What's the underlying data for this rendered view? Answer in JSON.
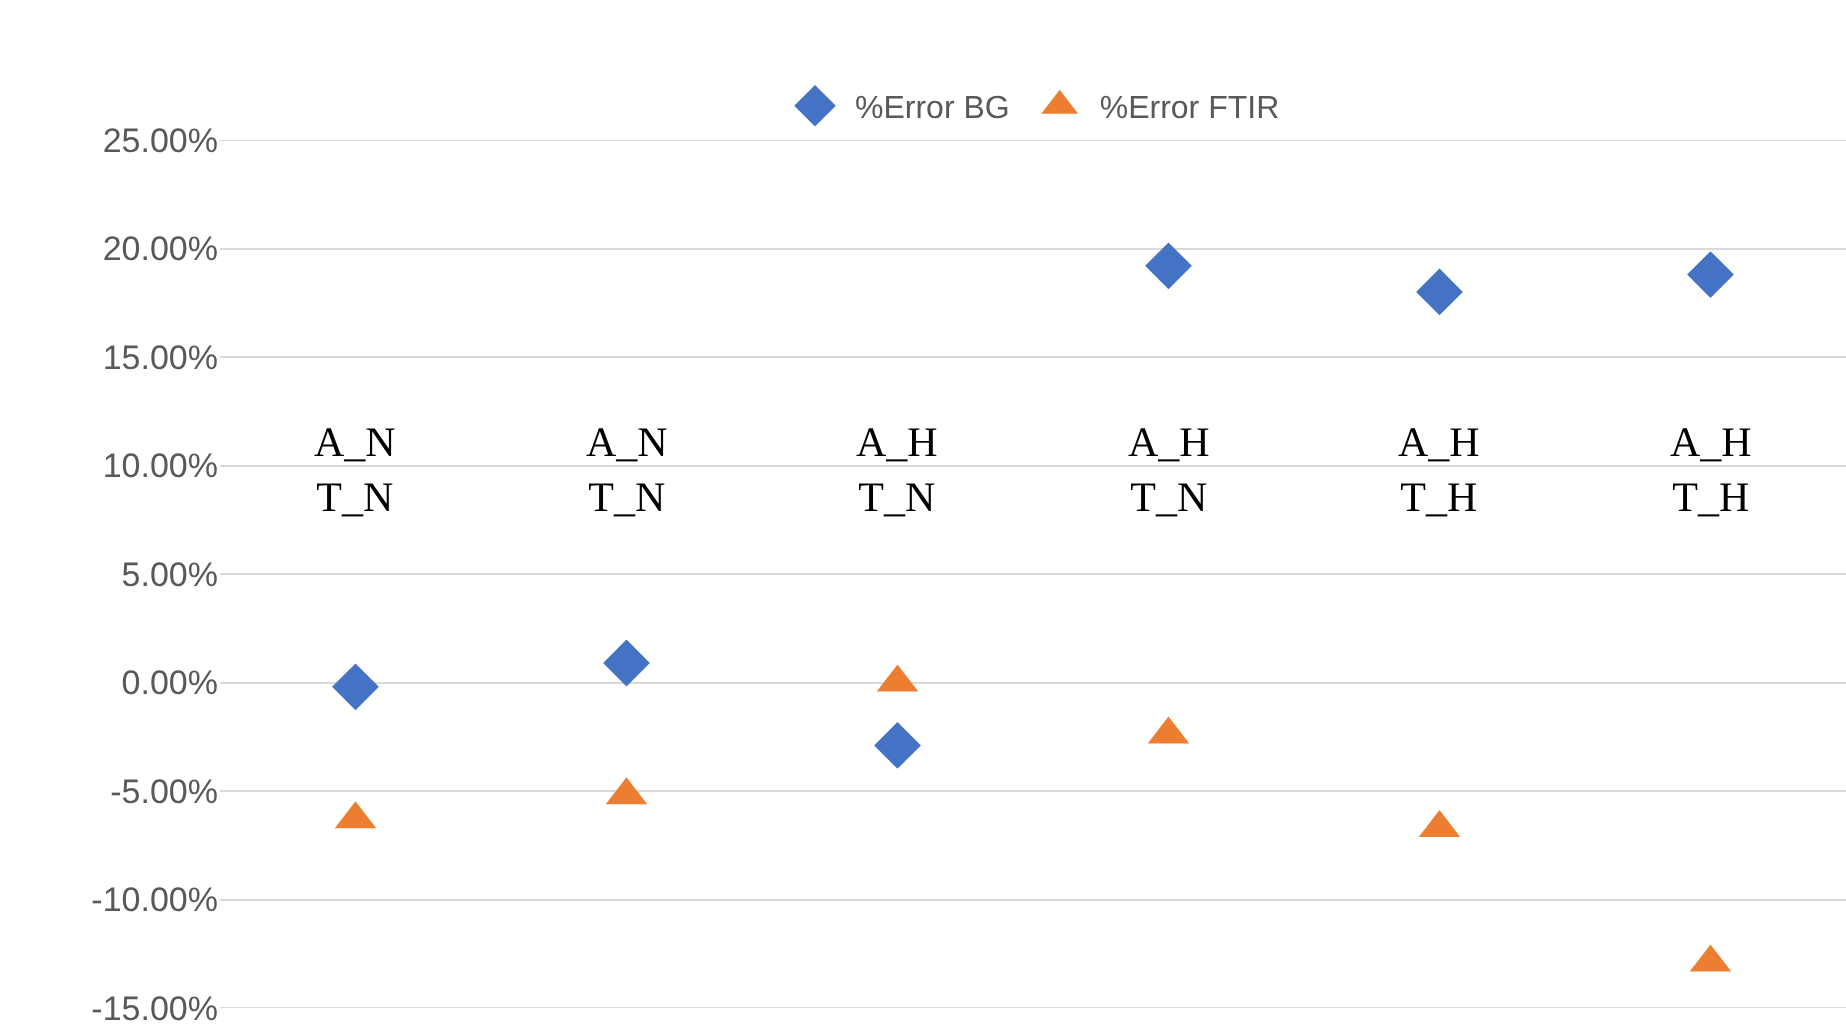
{
  "chart_data": {
    "type": "scatter",
    "categories": [
      null,
      null,
      null,
      null,
      null,
      null
    ],
    "series": [
      {
        "name": "%Error BG",
        "color": "#4472c4",
        "marker": "diamond",
        "values": [
          -0.2,
          0.9,
          -2.9,
          19.2,
          18.0,
          18.8
        ]
      },
      {
        "name": "%Error FTIR",
        "color": "#ed7d31",
        "marker": "triangle",
        "values": [
          -6.3,
          -5.2,
          0.0,
          -2.4,
          -6.7,
          -12.9
        ]
      }
    ],
    "ylim": [
      -15,
      25
    ],
    "yticks": [
      {
        "value": -15,
        "label": "-15.00%"
      },
      {
        "value": -10,
        "label": "-10.00%"
      },
      {
        "value": -5,
        "label": "-5.00%"
      },
      {
        "value": 0,
        "label": "0.00%"
      },
      {
        "value": 5,
        "label": "5.00%"
      },
      {
        "value": 10,
        "label": "10.00%"
      },
      {
        "value": 15,
        "label": "15.00%"
      },
      {
        "value": 20,
        "label": "20.00%"
      },
      {
        "value": 25,
        "label": "25.00%"
      }
    ],
    "annotations": [
      "A_N\nT_N",
      "A_N\nT_N",
      "A_H\nT_N",
      "A_H\nT_N",
      "A_H\nT_H",
      "A_H\nT_H"
    ],
    "grid": "y",
    "legend": "top",
    "tick_labels": "y"
  }
}
